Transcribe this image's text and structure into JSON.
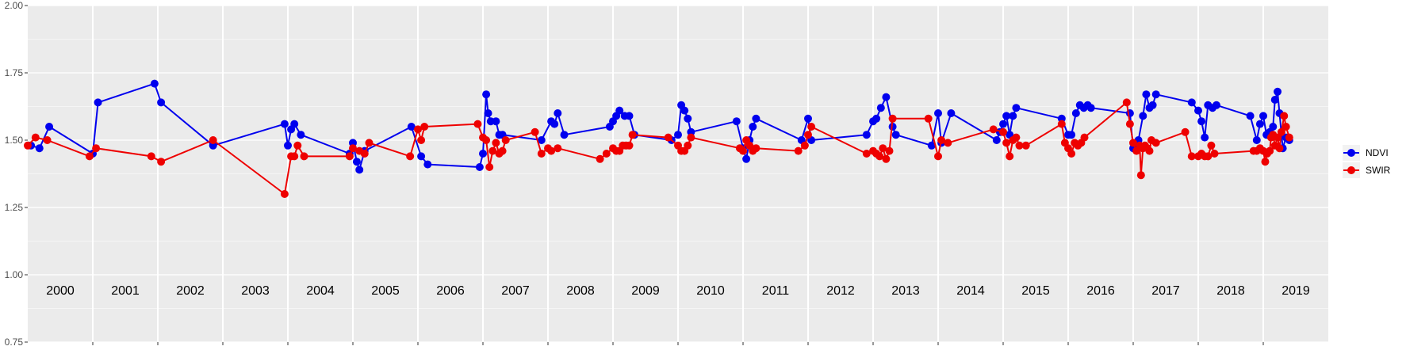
{
  "chart_data": {
    "type": "line",
    "xlim": [
      2000.0,
      2020.0
    ],
    "ylim": [
      0.75,
      2.0
    ],
    "y_ticks": [
      "0.75",
      "1.00",
      "1.25",
      "1.50",
      "1.75",
      "2.00"
    ],
    "y_tick_values": [
      0.75,
      1.0,
      1.25,
      1.5,
      1.75,
      2.0
    ],
    "year_labels": [
      "2000",
      "2001",
      "2002",
      "2003",
      "2004",
      "2005",
      "2006",
      "2007",
      "2008",
      "2009",
      "2010",
      "2011",
      "2012",
      "2013",
      "2014",
      "2015",
      "2016",
      "2017",
      "2018",
      "2019"
    ],
    "grid": true,
    "legend_position": "right",
    "colors": {
      "panel": "#ebebeb",
      "grid": "#ffffff",
      "ndvi": "#0000ee",
      "swir": "#ee0000"
    },
    "series": [
      {
        "name": "NDVI",
        "x": [
          2000.05,
          2000.18,
          2000.33,
          2001.0,
          2001.08,
          2001.95,
          2002.05,
          2002.85,
          2003.95,
          2004.0,
          2004.05,
          2004.1,
          2004.2,
          2004.95,
          2005.0,
          2005.06,
          2005.1,
          2005.18,
          2005.9,
          2006.05,
          2006.15,
          2006.95,
          2007.0,
          2007.05,
          2007.08,
          2007.12,
          2007.2,
          2007.25,
          2007.3,
          2007.9,
          2008.05,
          2008.1,
          2008.15,
          2008.25,
          2008.95,
          2009.0,
          2009.05,
          2009.1,
          2009.18,
          2009.25,
          2009.33,
          2009.9,
          2010.0,
          2010.05,
          2010.1,
          2010.15,
          2010.2,
          2010.9,
          2011.0,
          2011.05,
          2011.1,
          2011.15,
          2011.2,
          2011.9,
          2012.0,
          2012.05,
          2012.9,
          2013.0,
          2013.05,
          2013.12,
          2013.2,
          2013.3,
          2013.35,
          2013.9,
          2014.0,
          2014.05,
          2014.2,
          2014.9,
          2014.95,
          2015.0,
          2015.05,
          2015.1,
          2015.15,
          2015.2,
          2015.9,
          2016.0,
          2016.05,
          2016.12,
          2016.18,
          2016.24,
          2016.3,
          2016.35,
          2016.95,
          2017.0,
          2017.08,
          2017.15,
          2017.2,
          2017.25,
          2017.3,
          2017.35,
          2017.9,
          2018.0,
          2018.05,
          2018.1,
          2018.15,
          2018.22,
          2018.28,
          2018.8,
          2018.9,
          2018.95,
          2019.0,
          2019.05,
          2019.1,
          2019.15,
          2019.18,
          2019.22,
          2019.25,
          2019.3,
          2019.35,
          2019.4
        ],
        "values": [
          1.48,
          1.47,
          1.55,
          1.45,
          1.64,
          1.71,
          1.64,
          1.48,
          1.56,
          1.48,
          1.54,
          1.56,
          1.52,
          1.45,
          1.49,
          1.42,
          1.39,
          1.46,
          1.55,
          1.44,
          1.41,
          1.4,
          1.45,
          1.67,
          1.6,
          1.57,
          1.57,
          1.52,
          1.52,
          1.5,
          1.57,
          1.56,
          1.6,
          1.52,
          1.55,
          1.57,
          1.59,
          1.61,
          1.59,
          1.59,
          1.52,
          1.5,
          1.52,
          1.63,
          1.61,
          1.58,
          1.53,
          1.57,
          1.47,
          1.43,
          1.5,
          1.55,
          1.58,
          1.5,
          1.58,
          1.5,
          1.52,
          1.57,
          1.58,
          1.62,
          1.66,
          1.55,
          1.52,
          1.48,
          1.6,
          1.49,
          1.6,
          1.5,
          1.53,
          1.56,
          1.59,
          1.52,
          1.59,
          1.62,
          1.58,
          1.52,
          1.52,
          1.6,
          1.63,
          1.62,
          1.63,
          1.62,
          1.6,
          1.47,
          1.5,
          1.59,
          1.67,
          1.62,
          1.63,
          1.67,
          1.64,
          1.61,
          1.57,
          1.51,
          1.63,
          1.62,
          1.63,
          1.59,
          1.5,
          1.56,
          1.59,
          1.52,
          1.53,
          1.55,
          1.65,
          1.68,
          1.6,
          1.47,
          1.51,
          1.5
        ]
      },
      {
        "name": "SWIR",
        "x": [
          2000.0,
          2000.12,
          2000.3,
          2000.95,
          2001.05,
          2001.9,
          2002.05,
          2002.85,
          2003.95,
          2004.05,
          2004.1,
          2004.15,
          2004.25,
          2004.95,
          2005.0,
          2005.1,
          2005.18,
          2005.25,
          2005.88,
          2006.0,
          2006.05,
          2006.1,
          2006.92,
          2007.0,
          2007.05,
          2007.1,
          2007.15,
          2007.2,
          2007.25,
          2007.3,
          2007.35,
          2007.8,
          2007.9,
          2008.0,
          2008.05,
          2008.15,
          2008.8,
          2008.9,
          2009.0,
          2009.05,
          2009.1,
          2009.15,
          2009.2,
          2009.25,
          2009.3,
          2009.85,
          2010.0,
          2010.05,
          2010.1,
          2010.15,
          2010.2,
          2010.95,
          2011.0,
          2011.05,
          2011.1,
          2011.15,
          2011.2,
          2011.85,
          2011.95,
          2012.0,
          2012.05,
          2012.9,
          2013.0,
          2013.05,
          2013.1,
          2013.15,
          2013.2,
          2013.25,
          2013.3,
          2013.85,
          2014.0,
          2014.05,
          2014.15,
          2014.85,
          2015.0,
          2015.05,
          2015.1,
          2015.15,
          2015.2,
          2015.25,
          2015.35,
          2015.9,
          2015.95,
          2016.0,
          2016.05,
          2016.1,
          2016.15,
          2016.2,
          2016.25,
          2016.9,
          2016.95,
          2017.0,
          2017.05,
          2017.1,
          2017.12,
          2017.15,
          2017.18,
          2017.22,
          2017.25,
          2017.28,
          2017.35,
          2017.8,
          2017.9,
          2018.0,
          2018.05,
          2018.1,
          2018.15,
          2018.2,
          2018.25,
          2018.85,
          2018.9,
          2018.95,
          2019.0,
          2019.03,
          2019.06,
          2019.1,
          2019.12,
          2019.15,
          2019.18,
          2019.22,
          2019.25,
          2019.28,
          2019.32,
          2019.35,
          2019.4
        ],
        "values": [
          1.48,
          1.51,
          1.5,
          1.44,
          1.47,
          1.44,
          1.42,
          1.5,
          1.3,
          1.44,
          1.44,
          1.48,
          1.44,
          1.44,
          1.47,
          1.46,
          1.45,
          1.49,
          1.44,
          1.54,
          1.5,
          1.55,
          1.56,
          1.51,
          1.5,
          1.4,
          1.46,
          1.49,
          1.45,
          1.46,
          1.5,
          1.53,
          1.45,
          1.47,
          1.46,
          1.47,
          1.43,
          1.45,
          1.47,
          1.46,
          1.46,
          1.48,
          1.48,
          1.48,
          1.52,
          1.51,
          1.48,
          1.46,
          1.46,
          1.48,
          1.51,
          1.47,
          1.46,
          1.5,
          1.48,
          1.46,
          1.47,
          1.46,
          1.48,
          1.52,
          1.55,
          1.45,
          1.46,
          1.45,
          1.44,
          1.47,
          1.43,
          1.46,
          1.58,
          1.58,
          1.44,
          1.5,
          1.49,
          1.54,
          1.53,
          1.49,
          1.44,
          1.5,
          1.51,
          1.48,
          1.48,
          1.56,
          1.49,
          1.47,
          1.45,
          1.49,
          1.48,
          1.49,
          1.51,
          1.64,
          1.56,
          1.49,
          1.46,
          1.48,
          1.37,
          1.47,
          1.48,
          1.47,
          1.46,
          1.5,
          1.49,
          1.53,
          1.44,
          1.44,
          1.45,
          1.44,
          1.44,
          1.48,
          1.45,
          1.46,
          1.46,
          1.47,
          1.46,
          1.42,
          1.45,
          1.46,
          1.51,
          1.52,
          1.48,
          1.51,
          1.47,
          1.53,
          1.59,
          1.55,
          1.51
        ]
      }
    ]
  }
}
